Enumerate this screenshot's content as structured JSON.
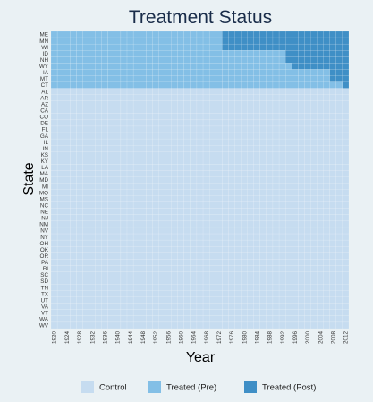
{
  "chart_data": {
    "type": "heatmap",
    "title": "Treatment Status",
    "xlabel": "Year",
    "ylabel": "State",
    "legend_position": "bottom",
    "states": [
      "ME",
      "MN",
      "WI",
      "ID",
      "NH",
      "WY",
      "IA",
      "MT",
      "CT",
      "AL",
      "AR",
      "AZ",
      "CA",
      "CO",
      "DE",
      "FL",
      "GA",
      "IL",
      "IN",
      "KS",
      "KY",
      "LA",
      "MA",
      "MD",
      "MI",
      "MO",
      "MS",
      "NC",
      "NE",
      "NJ",
      "NM",
      "NV",
      "NY",
      "OH",
      "OK",
      "OR",
      "PA",
      "RI",
      "SC",
      "SD",
      "TN",
      "TX",
      "UT",
      "VA",
      "VT",
      "WA",
      "WV"
    ],
    "year_start": 1920,
    "year_end": 2012,
    "year_step": 2,
    "x_tick_labels": [
      "1920",
      "1924",
      "1928",
      "1932",
      "1936",
      "1940",
      "1944",
      "1948",
      "1952",
      "1956",
      "1960",
      "1964",
      "1968",
      "1972",
      "1976",
      "1980",
      "1984",
      "1988",
      "1992",
      "1996",
      "2000",
      "2004",
      "2008",
      "2012"
    ],
    "categories": [
      {
        "name": "Control",
        "color": "#c6dcf0"
      },
      {
        "name": "Treated (Pre)",
        "color": "#83bfe6"
      },
      {
        "name": "Treated (Post)",
        "color": "#3f8fc6"
      }
    ],
    "treated_states": [
      {
        "state": "ME",
        "first_post_year": 1974
      },
      {
        "state": "MN",
        "first_post_year": 1974
      },
      {
        "state": "WI",
        "first_post_year": 1974
      },
      {
        "state": "ID",
        "first_post_year": 1994
      },
      {
        "state": "NH",
        "first_post_year": 1994
      },
      {
        "state": "WY",
        "first_post_year": 1996
      },
      {
        "state": "IA",
        "first_post_year": 2008
      },
      {
        "state": "MT",
        "first_post_year": 2008
      },
      {
        "state": "CT",
        "first_post_year": 2012
      }
    ]
  }
}
